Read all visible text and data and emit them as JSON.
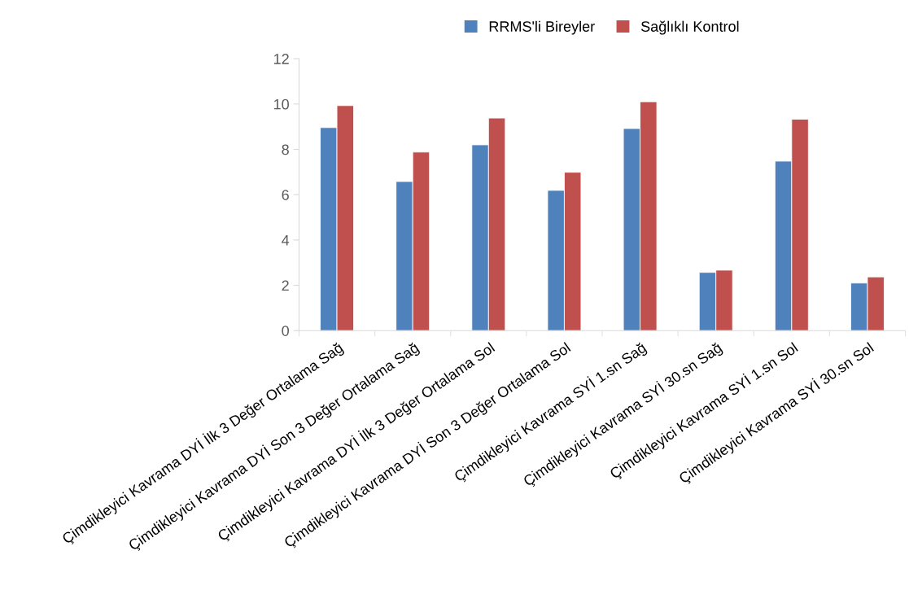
{
  "chart_data": {
    "type": "bar",
    "categories": [
      "Çimdikleyici Kavrama DYİ İlk 3 Değer Ortalama Sağ",
      "Çimdikleyici Kavrama DYİ Son 3 Değer Ortalama Sağ",
      "Çimdikleyici Kavrama DYİ İlk 3 Değer Ortalama Sol",
      "Çimdikleyici Kavrama DYİ Son 3 Değer Ortalama Sol",
      "Çimdikleyici Kavrama SYİ 1.sn Sağ",
      "Çimdikleyici Kavrama SYİ 30.sn Sağ",
      "Çimdikleyici Kavrama SYİ 1.sn Sol",
      "Çimdikleyici Kavrama SYİ 30.sn Sol"
    ],
    "series": [
      {
        "name": "RRMS'li Bireyler",
        "color": "#4f81bd",
        "values": [
          8.96,
          6.58,
          8.2,
          6.19,
          8.92,
          2.57,
          7.48,
          2.1
        ]
      },
      {
        "name": "Sağlıklı Kontrol",
        "color": "#c0504d",
        "values": [
          9.93,
          7.88,
          9.38,
          6.99,
          10.1,
          2.67,
          9.33,
          2.37
        ]
      }
    ],
    "ylim": [
      0,
      12
    ],
    "yticks": [
      0,
      2,
      4,
      6,
      8,
      10,
      12
    ],
    "grid": false,
    "legend": "top"
  }
}
